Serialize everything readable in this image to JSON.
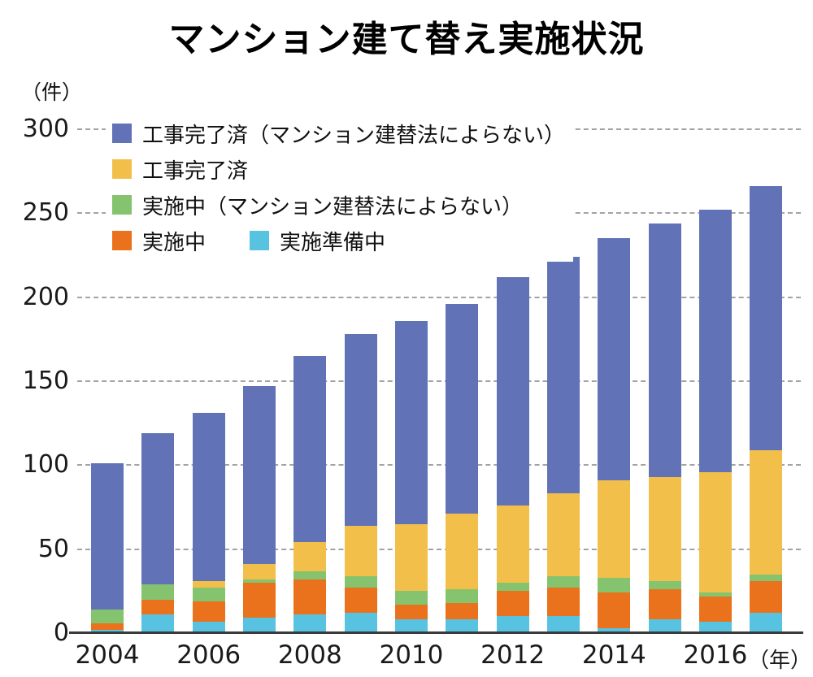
{
  "title": "マンション建て替え実施状況",
  "y_axis": {
    "unit": "（件）",
    "ticks": [
      "0",
      "50",
      "100",
      "150",
      "200",
      "250",
      "300"
    ]
  },
  "x_axis": {
    "tick_labels": [
      "2004",
      "2006",
      "2008",
      "2010",
      "2012",
      "2014",
      "2016"
    ],
    "suffix": "（年）"
  },
  "legend": {
    "items": [
      {
        "label": "工事完了済（マンション建替法によらない）",
        "color": "#6173b6"
      },
      {
        "label": "工事完了済",
        "color": "#f2c04a"
      },
      {
        "label": "実施中（マンション建替法によらない）",
        "color": "#85c36e"
      },
      {
        "label": "実施中",
        "color": "#ea721c"
      },
      {
        "label": "実施準備中",
        "color": "#58c3e0"
      }
    ]
  },
  "chart_data": {
    "type": "bar",
    "stacked": true,
    "title": "マンション建て替え実施状況",
    "ylabel": "（件）",
    "ylim": [
      0,
      300
    ],
    "y_ticks": [
      0,
      50,
      100,
      150,
      200,
      250,
      300
    ],
    "grid": "horizontal-dashed",
    "legend_position": "top-left-overlay",
    "x": [
      2004,
      2005,
      2006,
      2007,
      2008,
      2009,
      2010,
      2011,
      2012,
      2013,
      2014,
      2015,
      2016,
      2017
    ],
    "series": [
      {
        "name": "実施準備中",
        "color": "#58c3e0",
        "values": [
          2,
          11,
          7,
          9,
          11,
          12,
          8,
          8,
          10,
          10,
          3,
          8,
          7,
          12
        ]
      },
      {
        "name": "実施中",
        "color": "#ea721c",
        "values": [
          4,
          9,
          12,
          21,
          21,
          15,
          9,
          10,
          15,
          17,
          21,
          18,
          15,
          19
        ]
      },
      {
        "name": "実施中（マンション建替法によらない）",
        "color": "#85c36e",
        "values": [
          8,
          9,
          8,
          2,
          5,
          7,
          8,
          8,
          5,
          7,
          9,
          5,
          2,
          4
        ]
      },
      {
        "name": "工事完了済",
        "color": "#f2c04a",
        "values": [
          0,
          0,
          4,
          9,
          17,
          30,
          40,
          45,
          46,
          49,
          58,
          62,
          72,
          74
        ]
      },
      {
        "name": "工事完了済（マンション建替法によらない）",
        "color": "#6173b6",
        "values": [
          87,
          90,
          100,
          106,
          111,
          114,
          121,
          125,
          136,
          141,
          144,
          151,
          156,
          157
        ]
      }
    ],
    "totals": [
      101,
      119,
      131,
      147,
      165,
      178,
      186,
      196,
      212,
      224,
      235,
      244,
      252,
      266
    ]
  }
}
